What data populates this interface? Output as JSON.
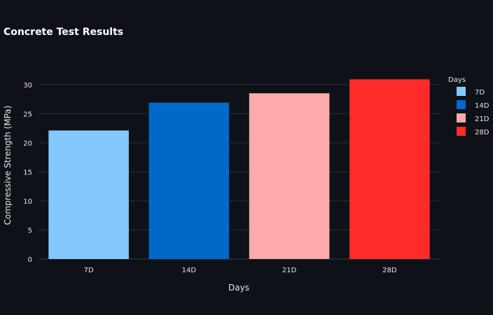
{
  "chart_data": {
    "type": "bar",
    "title": "Concrete Test Results",
    "xlabel": "Days",
    "ylabel": "Compressive Strength (MPa)",
    "categories": [
      "7D",
      "14D",
      "21D",
      "28D"
    ],
    "values": [
      22.1,
      26.9,
      28.5,
      30.9
    ],
    "colors": [
      "#83c9ff",
      "#0068c9",
      "#ffabab",
      "#ff2b2b"
    ],
    "ylim": [
      0,
      32.5
    ],
    "yticks": [
      0,
      5,
      10,
      15,
      20,
      25,
      30
    ],
    "grid": true,
    "legend": {
      "title": "Days",
      "placement": "right",
      "entries": [
        "7D",
        "14D",
        "21D",
        "28D"
      ]
    }
  }
}
